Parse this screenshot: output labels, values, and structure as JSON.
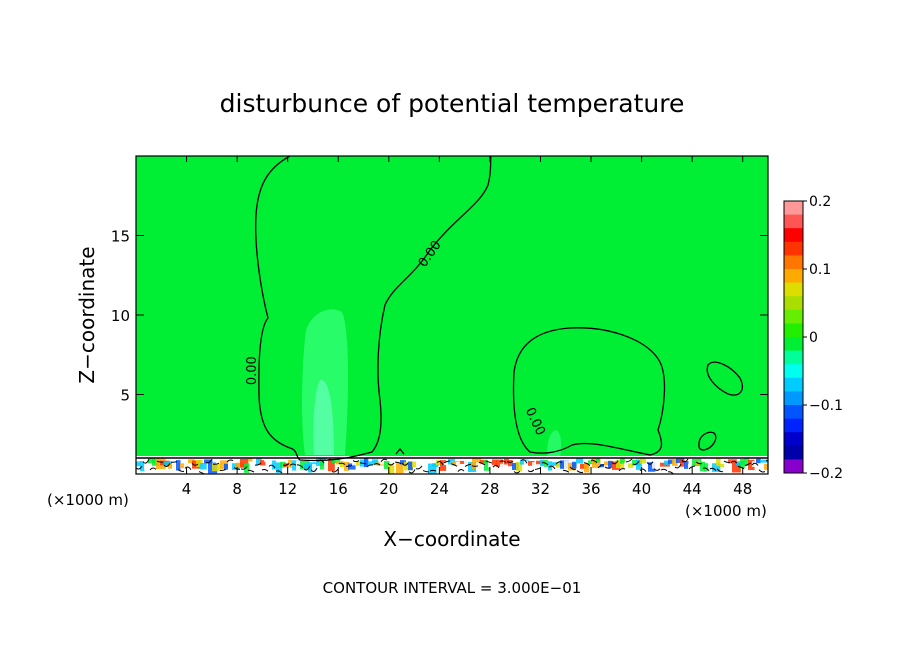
{
  "chart_data": {
    "type": "heatmap",
    "title": "disturbunce of potential temperature",
    "xlabel": "X−coordinate",
    "ylabel": "Z−coordinate",
    "x_unit_left": "(×1000 m)",
    "x_unit_right": "(×1000 m)",
    "footer": "CONTOUR INTERVAL = 3.000E−01",
    "xlim": [
      0,
      50
    ],
    "ylim": [
      0,
      20
    ],
    "x_ticks": [
      4,
      8,
      12,
      16,
      20,
      24,
      28,
      32,
      36,
      40,
      44,
      48
    ],
    "x_tick_labels": [
      "4",
      "8",
      "12",
      "16",
      "20",
      "24",
      "28",
      "32",
      "36",
      "40",
      "44",
      "48"
    ],
    "y_ticks": [
      5,
      10,
      15
    ],
    "y_tick_labels": [
      "5",
      "10",
      "15"
    ],
    "background_value": 0,
    "background_color": "#00ee33",
    "contour_labels": [
      {
        "text": "0.00",
        "x": 9.5,
        "y": 6.5
      },
      {
        "text": "0.00",
        "x": 23.5,
        "y": 13.7
      },
      {
        "text": "0.00",
        "x": 31.3,
        "y": 3.2
      }
    ],
    "colorbar": {
      "min": -0.2,
      "max": 0.2,
      "tick_values": [
        0.2,
        0.1,
        0,
        -0.1,
        -0.2
      ],
      "tick_labels": [
        "0.2",
        "0.1",
        "0",
        "−0.1",
        "−0.2"
      ],
      "colors": [
        "#ff9999",
        "#ff5555",
        "#ff0000",
        "#ff3300",
        "#ff7700",
        "#ffaa00",
        "#dddd00",
        "#aadd00",
        "#66ee00",
        "#22ee00",
        "#00ee33",
        "#00ff99",
        "#00ffee",
        "#00ccff",
        "#0099ff",
        "#0055ff",
        "#0022ff",
        "#0000cc",
        "#0000aa",
        "#8800cc"
      ]
    }
  }
}
